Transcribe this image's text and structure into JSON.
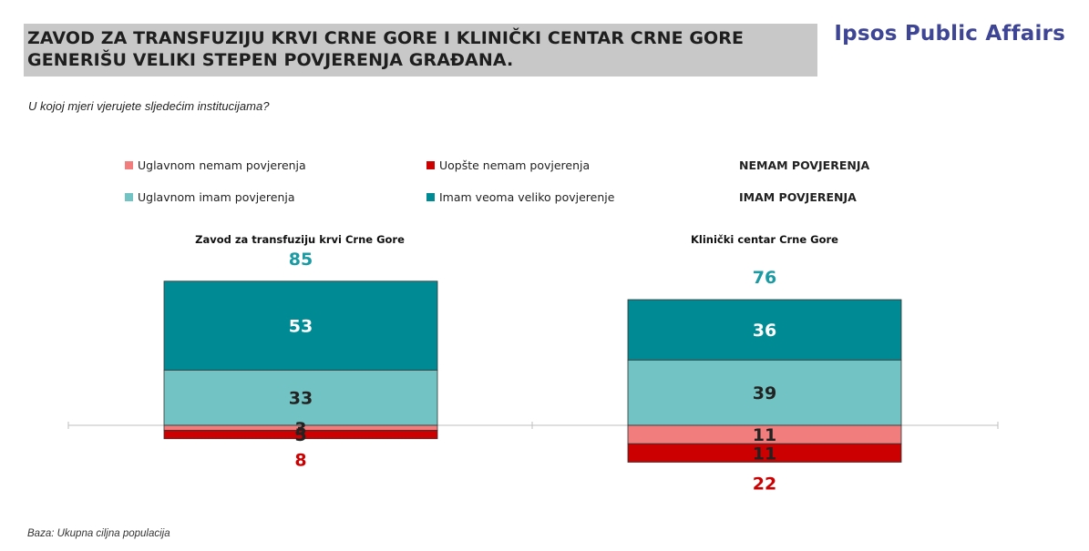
{
  "header": {
    "title_line1": "ZAVOD ZA TRANSFUZIJU KRVI CRNE GORE I KLINIČKI CENTAR CRNE GORE",
    "title_line2": "GENERIŠU VELIKI STEPEN POVJERENJA GRAĐANA.",
    "brand": "Ipsos Public Affairs"
  },
  "question": "U kojoj mjeri vjerujete sljedećim institucijama?",
  "legend": {
    "items": [
      {
        "label": "Uglavnom nemam povjerenja",
        "color": "#f27d7d"
      },
      {
        "label": "Uopšte nemam povjerenja",
        "color": "#cc0000"
      },
      {
        "label": "Uglavnom imam povjerenja",
        "color": "#72c4c4"
      },
      {
        "label": "Imam veoma veliko povjerenje",
        "color": "#008b94"
      }
    ],
    "group_negative": "NEMAM POVJERENJA",
    "group_positive": "IMAM POVJERENJA"
  },
  "footer": "Baza: Ukupna ciljna populacija",
  "colors": {
    "positive_total": "#1a9aa2",
    "negative_total": "#cc0000",
    "axis": "#bfbfbf"
  },
  "chart_data": {
    "type": "bar",
    "categories": [
      "Zavod za transfuziju krvi Crne Gore",
      "Klinički centar Crne Gore"
    ],
    "series": [
      {
        "name": "Imam veoma veliko povjerenje",
        "values": [
          53,
          36
        ],
        "color": "#008b94",
        "direction": "up"
      },
      {
        "name": "Uglavnom imam povjerenja",
        "values": [
          33,
          39
        ],
        "color": "#72c4c4",
        "direction": "up"
      },
      {
        "name": "Uglavnom nemam povjerenja",
        "values": [
          3,
          11
        ],
        "color": "#f27d7d",
        "direction": "down"
      },
      {
        "name": "Uopšte nemam povjerenja",
        "values": [
          5,
          11
        ],
        "color": "#cc0000",
        "direction": "down"
      }
    ],
    "totals_positive": [
      85,
      76
    ],
    "totals_negative": [
      8,
      22
    ],
    "stacking": "diverging"
  }
}
